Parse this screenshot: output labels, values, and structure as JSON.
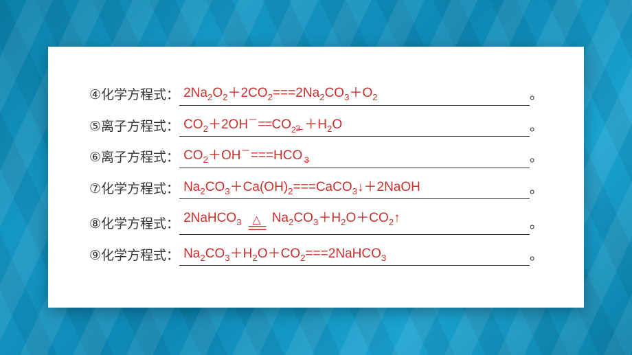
{
  "text_color_formula": "#c9302c",
  "text_color_label": "#333333",
  "rows": [
    {
      "num": "④",
      "type": "化学方程式：",
      "formula_key": "f4"
    },
    {
      "num": "⑤",
      "type": "离子方程式：",
      "formula_key": "f5"
    },
    {
      "num": "⑥",
      "type": "离子方程式：",
      "formula_key": "f6"
    },
    {
      "num": "⑦",
      "type": "化学方程式：",
      "formula_key": "f7"
    },
    {
      "num": "⑧",
      "type": "化学方程式：",
      "formula_key": "f8"
    },
    {
      "num": "⑨",
      "type": "化学方程式：",
      "formula_key": "f9"
    }
  ],
  "formulas": {
    "f4": "2Na<sub>2</sub>O<sub>2</sub>＋2CO<sub>2</sub>===2Na<sub>2</sub>CO<sub>3</sub>＋O<sub>2</sub>",
    "f5": "CO<sub>2</sub>＋2OH<span class=\"super-minus\">－</span><span class=\"dbl\">==</span>CO<span class=\"stack\"><sup>2－</sup><sub>3</sub></span>＋H<sub>2</sub>O",
    "f6": "CO<sub>2</sub>＋OH<span class=\"super-minus\">－</span>===HCO<span class=\"stack\"><sup>－</sup><sub>3</sub></span>",
    "f7": "Na<sub>2</sub>CO<sub>3</sub>＋Ca(OH)<sub>2</sub>===CaCO<sub>3</sub>↓＋2NaOH",
    "f8": "2NaHCO<sub>3</sub> <span class=\"eq-heat\"><span class=\"tri\">△</span><span class=\"dсредl\">===</span></span> Na<sub>2</sub>CO<sub>3</sub>＋H<sub>2</sub>O＋CO<sub>2</sub>↑",
    "f9": "Na<sub>2</sub>CO<sub>3</sub>＋H<sub>2</sub>O＋CO<sub>2</sub>===2NaHCO<sub>3</sub>"
  },
  "end_punct": "。"
}
